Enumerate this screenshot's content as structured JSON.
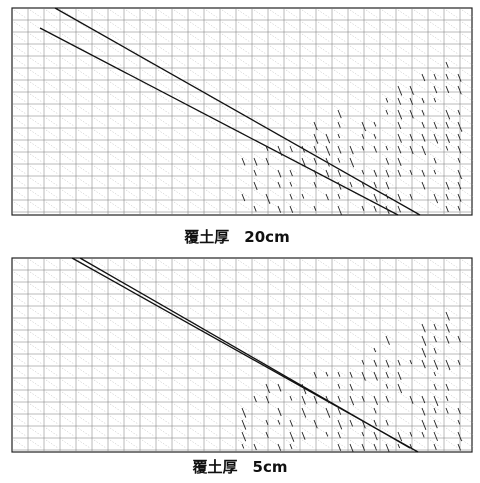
{
  "panels": [
    {
      "caption": "覆土厚　20cm"
    },
    {
      "caption": "覆土厚　5cm"
    }
  ]
}
